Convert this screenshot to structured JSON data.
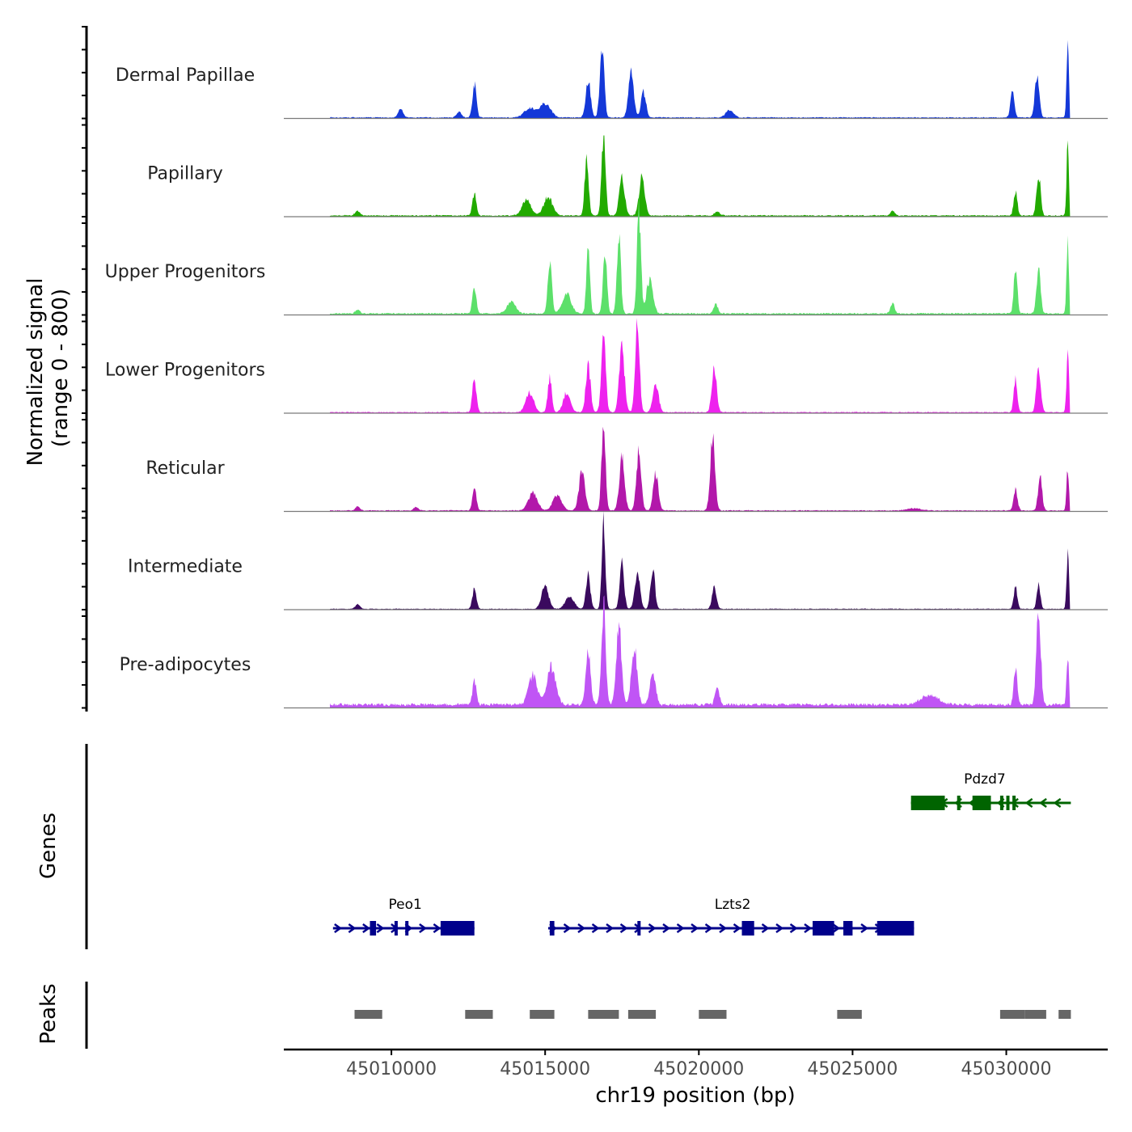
{
  "chart_data": {
    "type": "area",
    "chromosome": "chr19",
    "xlabel": "chr19 position (bp)",
    "xlim": [
      45006500,
      45033300
    ],
    "x_ticks": [
      45010000,
      45015000,
      45020000,
      45025000,
      45030000
    ],
    "x_tick_labels": [
      "45010000",
      "45015000",
      "45020000",
      "45025000",
      "45030000"
    ],
    "signal_ylabel_line1": "Normalized signal",
    "signal_ylabel_line2": "(range 0 - 800)",
    "signal_range": [
      0,
      800
    ],
    "genes_label": "Genes",
    "peaks_label": "Peaks",
    "tracks": [
      {
        "name": "Dermal Papillae",
        "color": "#1438d8",
        "peaks": [
          [
            45010300,
            80,
            110
          ],
          [
            45012200,
            55,
            110
          ],
          [
            45012700,
            330,
            90
          ],
          [
            45014500,
            90,
            250
          ],
          [
            45015000,
            130,
            250
          ],
          [
            45016400,
            370,
            110
          ],
          [
            45016850,
            660,
            100
          ],
          [
            45017800,
            440,
            120
          ],
          [
            45018200,
            250,
            110
          ],
          [
            45021000,
            70,
            180
          ],
          [
            45030200,
            260,
            90
          ],
          [
            45031000,
            420,
            100
          ],
          [
            45032000,
            700,
            55
          ]
        ],
        "baseline": 12
      },
      {
        "name": "Papillary",
        "color": "#22aa00",
        "peaks": [
          [
            45008900,
            45,
            110
          ],
          [
            45012700,
            210,
            90
          ],
          [
            45014400,
            150,
            200
          ],
          [
            45015100,
            180,
            200
          ],
          [
            45016350,
            560,
            90
          ],
          [
            45016900,
            780,
            90
          ],
          [
            45017500,
            390,
            120
          ],
          [
            45018150,
            370,
            130
          ],
          [
            45020600,
            40,
            120
          ],
          [
            45026300,
            45,
            100
          ],
          [
            45030300,
            240,
            80
          ],
          [
            45031050,
            410,
            90
          ],
          [
            45032000,
            680,
            55
          ]
        ],
        "baseline": 15
      },
      {
        "name": "Upper Progenitors",
        "color": "#5ce06a",
        "peaks": [
          [
            45008900,
            35,
            100
          ],
          [
            45012700,
            250,
            90
          ],
          [
            45013900,
            110,
            200
          ],
          [
            45015150,
            540,
            90
          ],
          [
            45015700,
            190,
            200
          ],
          [
            45016400,
            640,
            80
          ],
          [
            45016950,
            580,
            90
          ],
          [
            45017400,
            760,
            90
          ],
          [
            45018050,
            1000,
            90
          ],
          [
            45018400,
            320,
            150
          ],
          [
            45020550,
            90,
            100
          ],
          [
            45026300,
            100,
            90
          ],
          [
            45030300,
            450,
            80
          ],
          [
            45031050,
            470,
            90
          ],
          [
            45032000,
            720,
            55
          ]
        ],
        "baseline": 18
      },
      {
        "name": "Lower Progenitors",
        "color": "#ee22ee",
        "peaks": [
          [
            45012700,
            330,
            90
          ],
          [
            45014500,
            190,
            180
          ],
          [
            45015150,
            340,
            90
          ],
          [
            45015700,
            190,
            160
          ],
          [
            45016400,
            450,
            110
          ],
          [
            45016900,
            730,
            100
          ],
          [
            45017500,
            620,
            120
          ],
          [
            45018000,
            910,
            100
          ],
          [
            45018600,
            260,
            130
          ],
          [
            45020500,
            430,
            110
          ],
          [
            45030300,
            330,
            80
          ],
          [
            45031050,
            410,
            100
          ],
          [
            45032000,
            640,
            55
          ]
        ],
        "baseline": 12
      },
      {
        "name": "Reticular",
        "color": "#b218aa",
        "peaks": [
          [
            45008900,
            40,
            100
          ],
          [
            45010800,
            35,
            100
          ],
          [
            45012700,
            210,
            90
          ],
          [
            45014600,
            180,
            200
          ],
          [
            45015400,
            150,
            200
          ],
          [
            45016200,
            380,
            140
          ],
          [
            45016900,
            850,
            90
          ],
          [
            45017500,
            520,
            120
          ],
          [
            45018050,
            580,
            110
          ],
          [
            45018600,
            360,
            120
          ],
          [
            45020450,
            710,
            110
          ],
          [
            45027000,
            20,
            300
          ],
          [
            45030300,
            210,
            90
          ],
          [
            45031100,
            350,
            90
          ],
          [
            45032000,
            420,
            55
          ]
        ],
        "baseline": 12
      },
      {
        "name": "Intermediate",
        "color": "#3a0a5e",
        "peaks": [
          [
            45008900,
            50,
            100
          ],
          [
            45012700,
            200,
            90
          ],
          [
            45015000,
            230,
            160
          ],
          [
            45015800,
            120,
            200
          ],
          [
            45016400,
            330,
            100
          ],
          [
            45016900,
            870,
            80
          ],
          [
            45017500,
            440,
            100
          ],
          [
            45018000,
            360,
            120
          ],
          [
            45018500,
            400,
            100
          ],
          [
            45020500,
            210,
            100
          ],
          [
            45030300,
            230,
            80
          ],
          [
            45031050,
            240,
            80
          ],
          [
            45032000,
            540,
            55
          ]
        ],
        "baseline": 10
      },
      {
        "name": "Pre-adipocytes",
        "color": "#c055f5",
        "peaks": [
          [
            45012700,
            240,
            90
          ],
          [
            45014600,
            290,
            200
          ],
          [
            45015200,
            370,
            200
          ],
          [
            45016400,
            540,
            110
          ],
          [
            45016900,
            980,
            100
          ],
          [
            45017400,
            780,
            120
          ],
          [
            45017900,
            560,
            130
          ],
          [
            45018500,
            290,
            130
          ],
          [
            45020600,
            170,
            100
          ],
          [
            45027500,
            90,
            400
          ],
          [
            45030300,
            370,
            80
          ],
          [
            45031050,
            940,
            100
          ],
          [
            45032000,
            500,
            55
          ]
        ],
        "baseline": 40
      }
    ],
    "genes": [
      {
        "name": "Peo1",
        "strand": "+",
        "color": "#00008b",
        "start": 45008100,
        "end": 45012700,
        "exons": [
          [
            45009300,
            45009500
          ],
          [
            45010100,
            45010200
          ],
          [
            45010450,
            45010550
          ],
          [
            45011600,
            45012700
          ]
        ]
      },
      {
        "name": "Lzts2",
        "strand": "+",
        "color": "#00008b",
        "start": 45015100,
        "end": 45027000,
        "exons": [
          [
            45015150,
            45015300
          ],
          [
            45018000,
            45018080
          ],
          [
            45021400,
            45021800
          ],
          [
            45023700,
            45024400
          ],
          [
            45024700,
            45025000
          ],
          [
            45025800,
            45027000
          ]
        ]
      },
      {
        "name": "Pdzd7",
        "strand": "-",
        "color": "#006400",
        "start": 45026900,
        "end": 45032100,
        "exons": [
          [
            45026900,
            45028000
          ],
          [
            45028400,
            45028500
          ],
          [
            45028900,
            45029500
          ],
          [
            45029800,
            45029880
          ],
          [
            45030000,
            45030080
          ],
          [
            45030200,
            45030260
          ]
        ]
      }
    ],
    "peaks": [
      [
        45008800,
        45009700
      ],
      [
        45012400,
        45013300
      ],
      [
        45014500,
        45015300
      ],
      [
        45016400,
        45017400
      ],
      [
        45017700,
        45018600
      ],
      [
        45020000,
        45020900
      ],
      [
        45024500,
        45025300
      ],
      [
        45029800,
        45030600
      ],
      [
        45030600,
        45031300
      ],
      [
        45031700,
        45032100
      ]
    ]
  }
}
